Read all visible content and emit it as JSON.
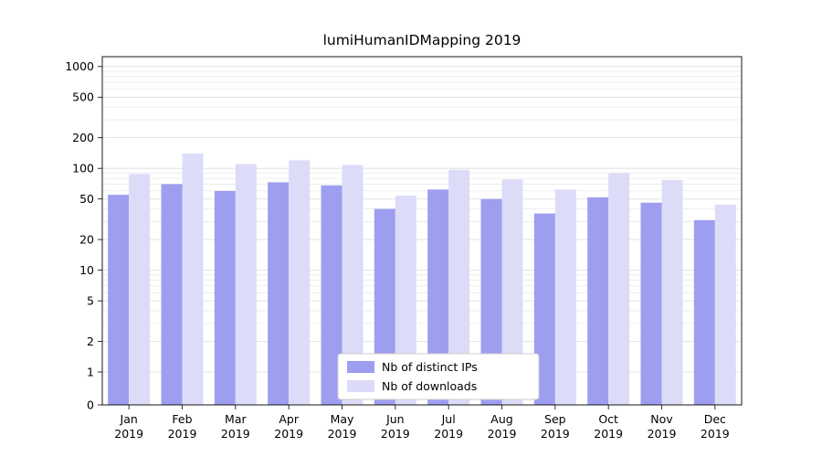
{
  "title": "lumiHumanIDMapping 2019",
  "chart_data": {
    "type": "bar",
    "title": "lumiHumanIDMapping 2019",
    "categories": [
      "Jan 2019",
      "Feb 2019",
      "Mar 2019",
      "Apr 2019",
      "May 2019",
      "Jun 2019",
      "Jul 2019",
      "Aug 2019",
      "Sep 2019",
      "Oct 2019",
      "Nov 2019",
      "Dec 2019"
    ],
    "series": [
      {
        "name": "Nb of distinct IPs",
        "color": "#9e9ef0",
        "values": [
          55,
          70,
          60,
          73,
          68,
          40,
          62,
          50,
          36,
          52,
          46,
          31
        ]
      },
      {
        "name": "Nb of downloads",
        "color": "#dcdcf9",
        "values": [
          88,
          140,
          110,
          120,
          108,
          54,
          97,
          78,
          62,
          90,
          77,
          44
        ]
      }
    ],
    "yscale": "symlog",
    "yticks": [
      0,
      1,
      2,
      5,
      10,
      20,
      50,
      100,
      200,
      500,
      1000
    ],
    "ylim": [
      0,
      1250
    ],
    "xlabel": "",
    "ylabel": "",
    "grid": true,
    "grid_minor_color": "#eaeaea",
    "grid_major_color": "#dcdcdc",
    "legend_position": "lower center",
    "plot_border_color": "#000000",
    "background_color": "#ffffff"
  }
}
